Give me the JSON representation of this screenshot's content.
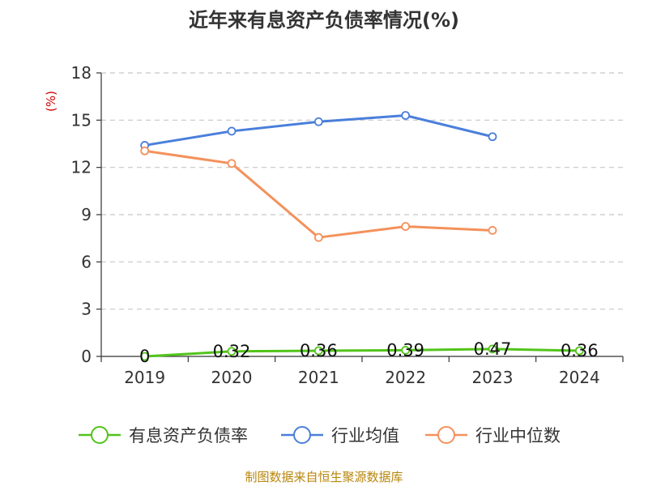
{
  "chart_data": {
    "type": "line",
    "title": "近年来有息资产负债率情况(%)",
    "ylabel": "(%)",
    "xlabel": "",
    "categories": [
      "2019",
      "2020",
      "2021",
      "2022",
      "2023",
      "2024"
    ],
    "ylim": [
      0,
      18
    ],
    "yticks": [
      "0",
      "3",
      "6",
      "9",
      "12",
      "15",
      "18"
    ],
    "grid": true,
    "legend_position": "bottom",
    "series": [
      {
        "name": "有息资产负债率",
        "color": "#52c41a",
        "values": [
          0,
          0.32,
          0.36,
          0.39,
          0.47,
          0.36
        ],
        "labels": [
          "0",
          "0.32",
          "0.36",
          "0.39",
          "0.47",
          "0.36"
        ]
      },
      {
        "name": "行业均值",
        "color": "#4a7fdb",
        "values": [
          13.4,
          14.3,
          14.9,
          15.3,
          13.95,
          null
        ]
      },
      {
        "name": "行业中位数",
        "color": "#f4915b",
        "values": [
          13.05,
          12.25,
          7.55,
          8.25,
          8.0,
          null
        ]
      }
    ],
    "source": "制图数据来自恒生聚源数据库"
  }
}
